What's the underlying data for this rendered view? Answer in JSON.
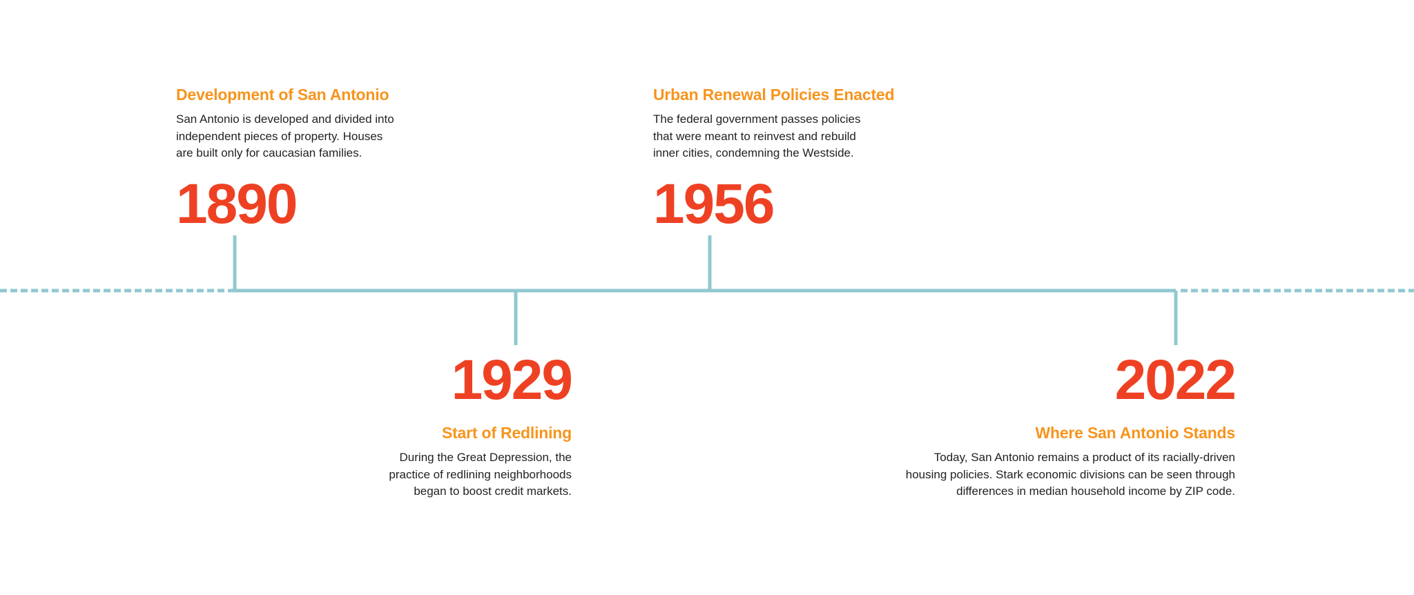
{
  "colors": {
    "title": "#f7941d",
    "year": "#ee4123",
    "line": "#92c8d0",
    "text": "#231f20"
  },
  "events": [
    {
      "year": "1890",
      "title": "Development of San Antonio",
      "lines": [
        "San Antonio is developed and divided into",
        "independent pieces of property. Houses",
        "are built only for caucasian families."
      ]
    },
    {
      "year": "1929",
      "title": "Start of Redlining",
      "lines": [
        "During the Great Depression, the",
        "practice of redlining neighborhoods",
        "began to boost credit markets."
      ]
    },
    {
      "year": "1956",
      "title": "Urban Renewal Policies Enacted",
      "lines": [
        "The federal government passes policies",
        "that were meant to reinvest and rebuild",
        "inner cities, condemning the Westside."
      ]
    },
    {
      "year": "2022",
      "title": "Where San Antonio Stands",
      "lines": [
        "Today, San Antonio remains a product of its racially-driven",
        "housing policies. Stark economic divisions can be seen through",
        "differences in median household income by ZIP code."
      ]
    }
  ]
}
